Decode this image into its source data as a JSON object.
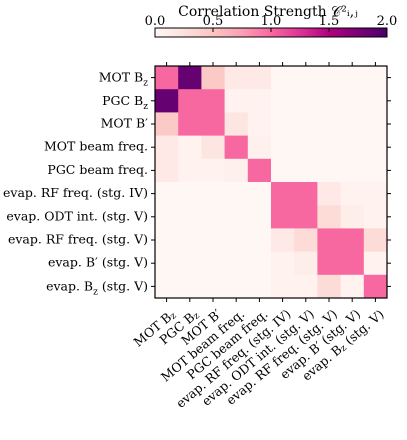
{
  "chart_data": {
    "type": "heatmap",
    "colorbar": {
      "title": "Correlation Strength 𝒞²ᵢ,ⱼ",
      "range": [
        0.0,
        2.0
      ],
      "ticks": [
        0.0,
        0.5,
        1.0,
        1.5,
        2.0
      ],
      "tick_labels": [
        "0.0",
        "0.5",
        "1.0",
        "1.5",
        "2.0"
      ],
      "placement": "top",
      "colors": [
        "#fff7f3",
        "#fde0dd",
        "#fcc5c0",
        "#fa9fb5",
        "#f768a1",
        "#dd3497",
        "#ae017e",
        "#7a0177",
        "#49006a"
      ]
    },
    "row_labels": [
      "MOT B_z",
      "PGC B_z",
      "MOT B′",
      "MOT beam freq.",
      "PGC beam freq.",
      "evap. RF freq. (stg. IV)",
      "evap. ODT int. (stg. V)",
      "evap. RF freq. (stg. V)",
      "evap. B′ (stg. V)",
      "evap. B_z (stg. V)"
    ],
    "col_labels": [
      "MOT B_z",
      "PGC B_z",
      "MOT B′",
      "MOT beam freq.",
      "PGC beam freq.",
      "evap. RF freq. (stg. IV)",
      "evap. ODT int. (stg. V)",
      "evap. RF freq. (stg. V)",
      "evap. B′ (stg. V)",
      "evap. B_z (stg. V)"
    ],
    "values": [
      [
        1.0,
        1.85,
        0.45,
        0.15,
        0.15,
        0.0,
        0.0,
        0.0,
        0.0,
        0.0
      ],
      [
        1.85,
        1.0,
        1.0,
        0.05,
        0.05,
        0.0,
        0.0,
        0.0,
        0.0,
        0.0
      ],
      [
        0.45,
        1.0,
        1.0,
        0.2,
        0.05,
        0.0,
        0.0,
        0.0,
        0.0,
        0.0
      ],
      [
        0.15,
        0.05,
        0.2,
        1.0,
        0.08,
        0.0,
        0.0,
        0.0,
        0.0,
        0.0
      ],
      [
        0.15,
        0.05,
        0.05,
        0.08,
        1.0,
        0.0,
        0.0,
        0.0,
        0.0,
        0.0
      ],
      [
        0.0,
        0.0,
        0.0,
        0.0,
        0.0,
        1.0,
        1.0,
        0.15,
        0.05,
        0.05
      ],
      [
        0.0,
        0.0,
        0.0,
        0.0,
        0.0,
        1.0,
        1.0,
        0.3,
        0.1,
        0.05
      ],
      [
        0.0,
        0.0,
        0.0,
        0.0,
        0.0,
        0.15,
        0.3,
        1.0,
        1.0,
        0.3
      ],
      [
        0.0,
        0.0,
        0.0,
        0.0,
        0.0,
        0.05,
        0.1,
        1.0,
        1.0,
        0.05
      ],
      [
        0.0,
        0.0,
        0.0,
        0.0,
        0.0,
        0.05,
        0.05,
        0.3,
        0.05,
        1.0
      ]
    ],
    "grid": false
  }
}
